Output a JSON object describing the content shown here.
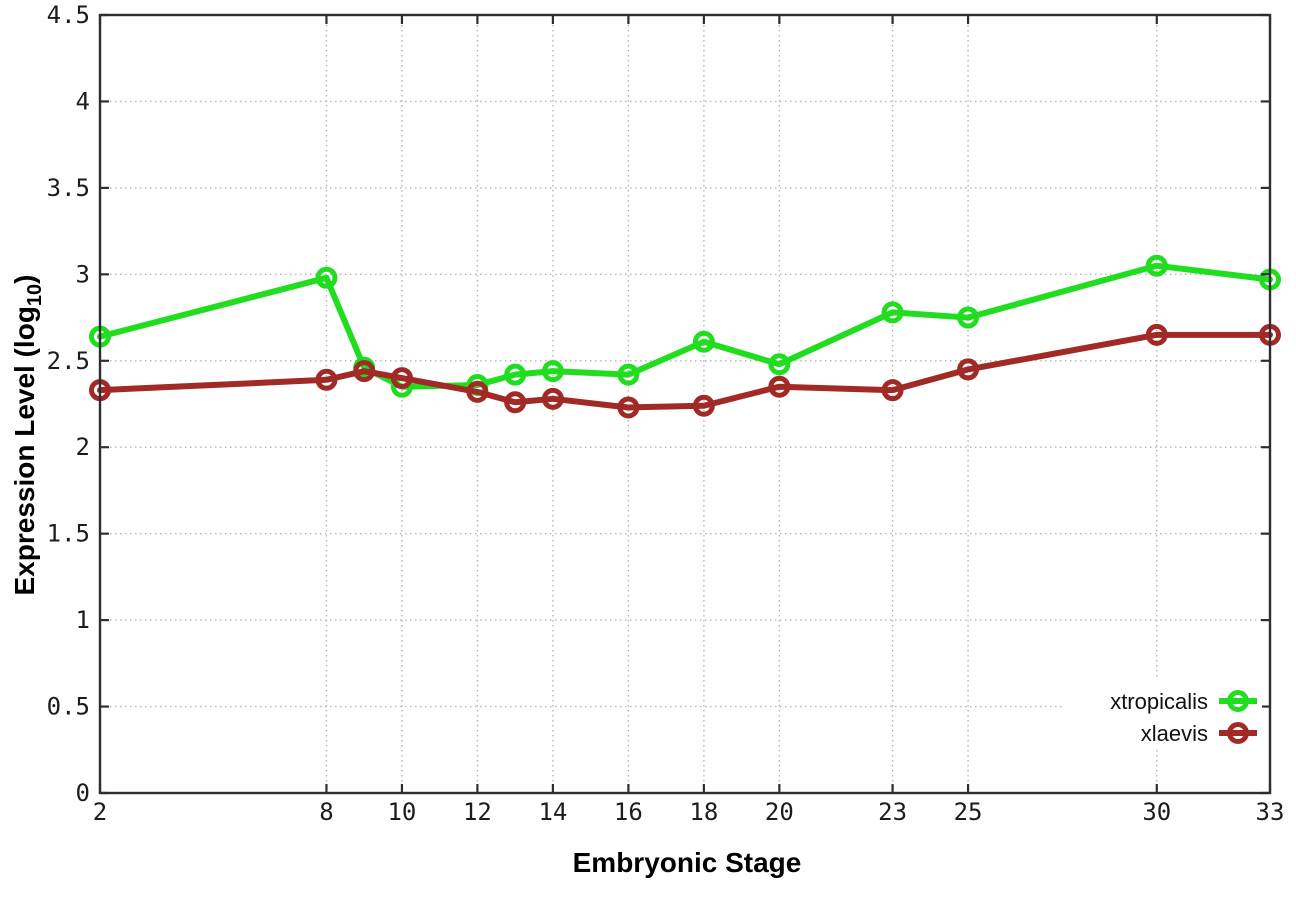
{
  "chart_data": {
    "type": "line",
    "title": "",
    "xlabel": "Embryonic Stage",
    "ylabel_parts": {
      "base": "Expression Level (log",
      "sub": "10",
      "close": ")"
    },
    "xlim": [
      2,
      33
    ],
    "ylim": [
      0,
      4.5
    ],
    "x_ticks": [
      2,
      8,
      10,
      12,
      14,
      16,
      18,
      20,
      23,
      25,
      30,
      33
    ],
    "x_tick_labels": [
      "2",
      "8",
      "10",
      "12",
      "14",
      "16",
      "18",
      "20",
      "23",
      "25",
      "30",
      "33"
    ],
    "y_ticks": [
      0,
      0.5,
      1,
      1.5,
      2,
      2.5,
      3,
      3.5,
      4,
      4.5
    ],
    "y_tick_labels": [
      "0",
      "0.5",
      "1",
      "1.5",
      "2",
      "2.5",
      "3",
      "3.5",
      "4",
      "4.5"
    ],
    "grid": true,
    "grid_color": "#b5b5b5",
    "border_color": "#2e2e2e",
    "legend_position": "bottom-right",
    "marker": "open-circle",
    "categories_x": [
      2,
      8,
      9,
      10,
      12,
      13,
      14,
      16,
      18,
      20,
      23,
      25,
      30,
      33
    ],
    "series": [
      {
        "name": "xtropicalis",
        "color": "#20dd20",
        "x": [
          2,
          8,
          9,
          10,
          12,
          13,
          14,
          16,
          18,
          20,
          23,
          25,
          30,
          33
        ],
        "y": [
          2.64,
          2.98,
          2.46,
          2.35,
          2.36,
          2.42,
          2.44,
          2.42,
          2.61,
          2.48,
          2.78,
          2.75,
          3.05,
          2.97
        ]
      },
      {
        "name": "xlaevis",
        "color": "#a22a26",
        "x": [
          2,
          8,
          9,
          10,
          12,
          13,
          14,
          16,
          18,
          20,
          23,
          25,
          30,
          33
        ],
        "y": [
          2.33,
          2.39,
          2.44,
          2.4,
          2.32,
          2.26,
          2.28,
          2.23,
          2.24,
          2.35,
          2.33,
          2.45,
          2.65,
          2.65
        ]
      }
    ]
  }
}
